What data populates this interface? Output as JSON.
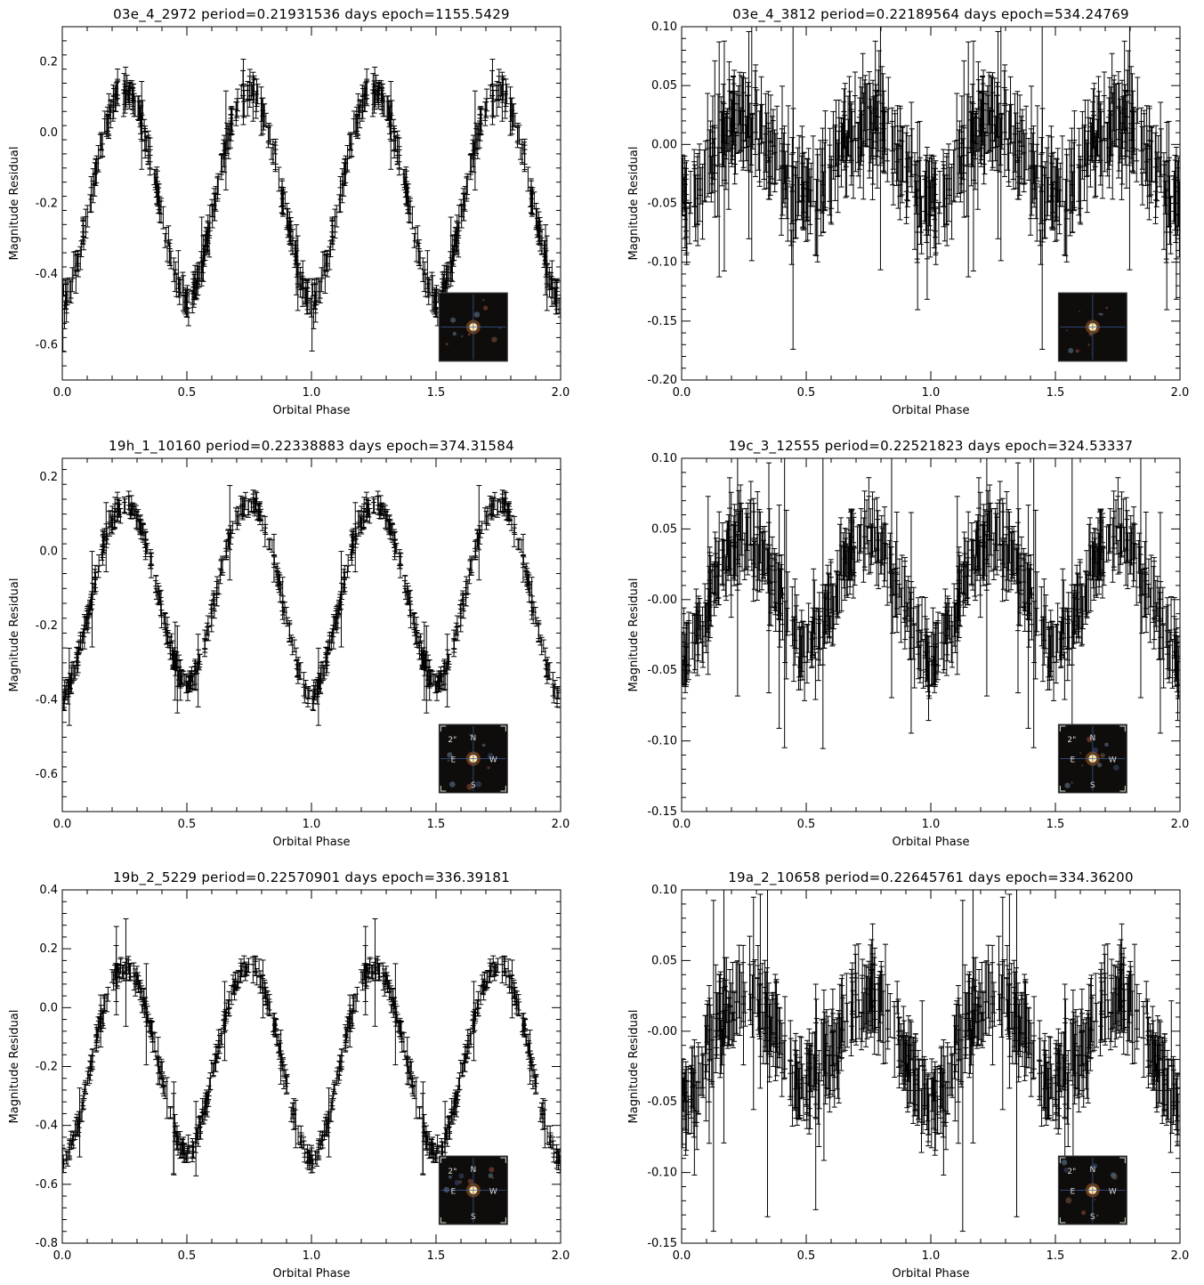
{
  "chart_data": [
    {
      "type": "scatter",
      "title": "03e_4_2972 period=0.21931536 days epoch=1155.5429",
      "xlabel": "Orbital Phase",
      "ylabel": "Magnitude Residual",
      "xlim": [
        0.0,
        2.0
      ],
      "ylim": [
        -0.7,
        0.3
      ],
      "xticks": [
        "0.0",
        "0.5",
        "1.0",
        "1.5",
        "2.0"
      ],
      "yticks": [
        -0.6,
        -0.4,
        -0.2,
        0.0,
        0.2
      ],
      "ytick_labels": [
        "-0.6",
        "-0.4",
        "-0.2",
        "0.0",
        "0.2"
      ],
      "error_bars": true,
      "grid": false,
      "light_curve": {
        "shape": "w_uma",
        "amplitude": 0.6,
        "maximum": 0.12,
        "primary_minimum": -0.48,
        "secondary_minimum": -0.48,
        "typical_error": 0.03
      },
      "inset": {
        "type": "sky-cutout",
        "position": "lower-right",
        "compass": false
      }
    },
    {
      "type": "scatter",
      "title": "03e_4_3812 period=0.22189564 days epoch=534.24769",
      "xlabel": "Orbital Phase",
      "ylabel": "Magnitude Residual",
      "xlim": [
        0.0,
        2.0
      ],
      "ylim": [
        -0.2,
        0.1
      ],
      "xticks": [
        "0.0",
        "0.5",
        "1.0",
        "1.5",
        "2.0"
      ],
      "yticks": [
        -0.2,
        -0.15,
        -0.1,
        -0.05,
        0.0,
        0.05,
        0.1
      ],
      "ytick_labels": [
        "-0.20",
        "-0.15",
        "-0.10",
        "-0.05",
        "0.00",
        "0.05",
        "0.10"
      ],
      "error_bars": true,
      "grid": false,
      "light_curve": {
        "shape": "w_uma",
        "amplitude": 0.07,
        "maximum": 0.02,
        "primary_minimum": -0.05,
        "secondary_minimum": -0.045,
        "typical_error": 0.025
      },
      "inset": {
        "type": "sky-cutout",
        "position": "lower-right",
        "compass": false
      }
    },
    {
      "type": "scatter",
      "title": "19h_1_10160 period=0.22338883 days epoch=374.31584",
      "xlabel": "Orbital Phase",
      "ylabel": "Magnitude Residual",
      "xlim": [
        0.0,
        2.0
      ],
      "ylim": [
        -0.7,
        0.25
      ],
      "xticks": [
        "0.0",
        "0.5",
        "1.0",
        "1.5",
        "2.0"
      ],
      "yticks": [
        -0.6,
        -0.4,
        -0.2,
        0.0,
        0.2
      ],
      "ytick_labels": [
        "-0.6",
        "-0.4",
        "-0.2",
        "0.0",
        "0.2"
      ],
      "error_bars": true,
      "grid": false,
      "light_curve": {
        "shape": "w_uma",
        "amplitude": 0.52,
        "maximum": 0.13,
        "primary_minimum": -0.39,
        "secondary_minimum": -0.36,
        "typical_error": 0.02
      },
      "inset": {
        "type": "sky-cutout",
        "position": "lower-right",
        "compass": true,
        "compass_labels": [
          "N",
          "S",
          "E",
          "W",
          "2\""
        ]
      }
    },
    {
      "type": "scatter",
      "title": "19c_3_12555 period=0.22521823 days epoch=324.53337",
      "xlabel": "Orbital Phase",
      "ylabel": "Magnitude Residual",
      "xlim": [
        0.0,
        2.0
      ],
      "ylim": [
        -0.15,
        0.1
      ],
      "xticks": [
        "0.0",
        "0.5",
        "1.0",
        "1.5",
        "2.0"
      ],
      "yticks": [
        -0.15,
        -0.1,
        -0.05,
        0.0,
        0.05,
        0.1
      ],
      "ytick_labels": [
        "-0.15",
        "-0.10",
        "-0.05",
        "-0.00",
        "0.05",
        "0.10"
      ],
      "error_bars": true,
      "grid": false,
      "light_curve": {
        "shape": "w_uma",
        "amplitude": 0.085,
        "maximum": 0.045,
        "primary_minimum": -0.04,
        "secondary_minimum": -0.03,
        "typical_error": 0.018
      },
      "inset": {
        "type": "sky-cutout",
        "position": "lower-right",
        "compass": true,
        "compass_labels": [
          "N",
          "S",
          "E",
          "W",
          "2\""
        ]
      }
    },
    {
      "type": "scatter",
      "title": "19b_2_5229 period=0.22570901 days epoch=336.39181",
      "xlabel": "Orbital Phase",
      "ylabel": "Magnitude Residual",
      "xlim": [
        0.0,
        2.0
      ],
      "ylim": [
        -0.8,
        0.4
      ],
      "xticks": [
        "0.0",
        "0.5",
        "1.0",
        "1.5",
        "2.0"
      ],
      "yticks": [
        -0.8,
        -0.6,
        -0.4,
        -0.2,
        0.0,
        0.2,
        0.4
      ],
      "ytick_labels": [
        "-0.8",
        "-0.6",
        "-0.4",
        "-0.2",
        "0.0",
        "0.2",
        "0.4"
      ],
      "error_bars": true,
      "grid": false,
      "light_curve": {
        "shape": "w_uma",
        "amplitude": 0.65,
        "maximum": 0.14,
        "primary_minimum": -0.52,
        "secondary_minimum": -0.5,
        "typical_error": 0.025
      },
      "inset": {
        "type": "sky-cutout",
        "position": "lower-right",
        "compass": true,
        "compass_labels": [
          "N",
          "S",
          "E",
          "W",
          "2\""
        ]
      }
    },
    {
      "type": "scatter",
      "title": "19a_2_10658 period=0.22645761 days epoch=334.36200",
      "xlabel": "Orbital Phase",
      "ylabel": "Magnitude Residual",
      "xlim": [
        0.0,
        2.0
      ],
      "ylim": [
        -0.15,
        0.1
      ],
      "xticks": [
        "0.0",
        "0.5",
        "1.0",
        "1.5",
        "2.0"
      ],
      "yticks": [
        -0.15,
        -0.1,
        -0.05,
        0.0,
        0.05,
        0.1
      ],
      "ytick_labels": [
        "-0.15",
        "-0.10",
        "-0.05",
        "-0.00",
        "0.05",
        "0.10"
      ],
      "error_bars": true,
      "grid": false,
      "light_curve": {
        "shape": "w_uma",
        "amplitude": 0.075,
        "maximum": 0.025,
        "primary_minimum": -0.05,
        "secondary_minimum": -0.04,
        "typical_error": 0.02
      },
      "inset": {
        "type": "sky-cutout",
        "position": "lower-right",
        "compass": true,
        "compass_labels": [
          "N",
          "S",
          "E",
          "W",
          "2\""
        ]
      }
    }
  ]
}
